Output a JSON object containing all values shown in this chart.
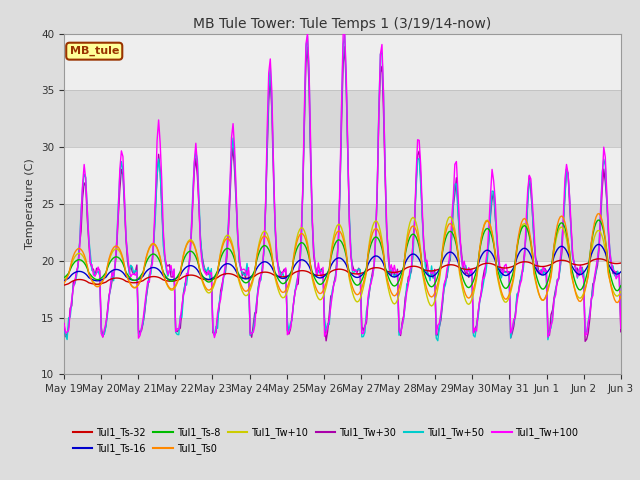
{
  "title": "MB Tule Tower: Tule Temps 1 (3/19/14-now)",
  "ylabel": "Temperature (C)",
  "xlim_labels": [
    "May 19",
    "May 20",
    "May 21",
    "May 22",
    "May 23",
    "May 24",
    "May 25",
    "May 26",
    "May 27",
    "May 28",
    "May 29",
    "May 30",
    "May 31",
    "Jun 1",
    "Jun 2",
    "Jun 3"
  ],
  "ylim": [
    10,
    40
  ],
  "yticks": [
    10,
    15,
    20,
    25,
    30,
    35,
    40
  ],
  "series": [
    {
      "label": "Tul1_Ts-32",
      "color": "#cc0000"
    },
    {
      "label": "Tul1_Ts-16",
      "color": "#0000cc"
    },
    {
      "label": "Tul1_Ts-8",
      "color": "#00bb00"
    },
    {
      "label": "Tul1_Ts0",
      "color": "#ff8800"
    },
    {
      "label": "Tul1_Tw+10",
      "color": "#cccc00"
    },
    {
      "label": "Tul1_Tw+30",
      "color": "#aa00aa"
    },
    {
      "label": "Tul1_Tw+50",
      "color": "#00cccc"
    },
    {
      "label": "Tul1_Tw+100",
      "color": "#ff00ff"
    }
  ],
  "legend_box_color": "#ffff99",
  "legend_box_border": "#993300",
  "legend_box_text": "MB_tule",
  "bg_color": "#dddddd",
  "plot_bg_light": "#eeeeee",
  "plot_bg_dark": "#d8d8d8"
}
